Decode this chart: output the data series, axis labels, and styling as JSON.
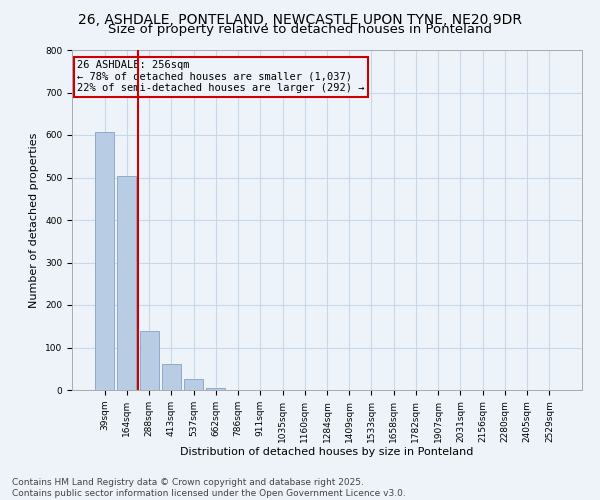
{
  "title_line1": "26, ASHDALE, PONTELAND, NEWCASTLE UPON TYNE, NE20 9DR",
  "title_line2": "Size of property relative to detached houses in Ponteland",
  "xlabel": "Distribution of detached houses by size in Ponteland",
  "ylabel": "Number of detached properties",
  "categories": [
    "39sqm",
    "164sqm",
    "288sqm",
    "413sqm",
    "537sqm",
    "662sqm",
    "786sqm",
    "911sqm",
    "1035sqm",
    "1160sqm",
    "1284sqm",
    "1409sqm",
    "1533sqm",
    "1658sqm",
    "1782sqm",
    "1907sqm",
    "2031sqm",
    "2156sqm",
    "2280sqm",
    "2405sqm",
    "2529sqm"
  ],
  "values": [
    607,
    503,
    140,
    62,
    25,
    5,
    0,
    0,
    0,
    0,
    0,
    0,
    0,
    0,
    0,
    0,
    0,
    0,
    0,
    0,
    0
  ],
  "bar_color": "#b8cce4",
  "bar_edge_color": "#8eaacc",
  "grid_color": "#c8d8e8",
  "background_color": "#eef3f9",
  "annotation_box_color": "#cc0000",
  "vline_color": "#cc0000",
  "vline_x": 1.5,
  "annotation_title": "26 ASHDALE: 256sqm",
  "annotation_line1": "← 78% of detached houses are smaller (1,037)",
  "annotation_line2": "22% of semi-detached houses are larger (292) →",
  "ylim": [
    0,
    800
  ],
  "yticks": [
    0,
    100,
    200,
    300,
    400,
    500,
    600,
    700,
    800
  ],
  "footer_line1": "Contains HM Land Registry data © Crown copyright and database right 2025.",
  "footer_line2": "Contains public sector information licensed under the Open Government Licence v3.0.",
  "title_fontsize": 10,
  "subtitle_fontsize": 9.5,
  "axis_label_fontsize": 8,
  "tick_fontsize": 6.5,
  "annotation_fontsize": 7.5,
  "footer_fontsize": 6.5
}
